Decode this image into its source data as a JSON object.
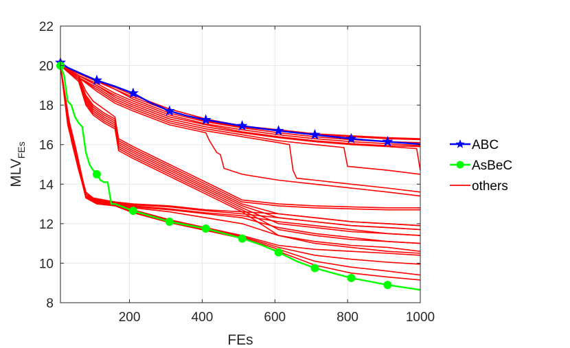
{
  "chart_data": {
    "type": "line",
    "xlabel": "FEs",
    "ylabel_main": "MLV",
    "ylabel_sub": "FEs",
    "xlim": [
      10,
      1000
    ],
    "ylim": [
      8,
      22
    ],
    "x_ticks": [
      200,
      400,
      600,
      800,
      1000
    ],
    "y_ticks": [
      8,
      10,
      12,
      14,
      16,
      18,
      20,
      22
    ],
    "grid": true,
    "legend_position": "right",
    "legend": [
      "ABC",
      "AsBeC",
      "others"
    ],
    "series": [
      {
        "name": "ABC",
        "color": "#0000ff",
        "marker": "star",
        "x": [
          10,
          30,
          60,
          110,
          160,
          210,
          260,
          280,
          310,
          360,
          410,
          460,
          510,
          560,
          610,
          660,
          710,
          760,
          810,
          860,
          910,
          960,
          1000
        ],
        "y": [
          20.15,
          19.9,
          19.65,
          19.25,
          18.95,
          18.6,
          18.1,
          17.95,
          17.7,
          17.45,
          17.25,
          17.1,
          16.95,
          16.82,
          16.7,
          16.6,
          16.5,
          16.4,
          16.3,
          16.22,
          16.15,
          16.08,
          16.02
        ],
        "marker_x": [
          10,
          110,
          210,
          310,
          410,
          510,
          610,
          710,
          810,
          910
        ]
      },
      {
        "name": "AsBeC",
        "color": "#00ff00",
        "marker": "circle",
        "x": [
          10,
          20,
          30,
          40,
          50,
          60,
          70,
          80,
          90,
          100,
          110,
          120,
          130,
          140,
          150,
          160,
          210,
          310,
          410,
          510,
          560,
          610,
          660,
          710,
          810,
          910,
          1000
        ],
        "y": [
          20.0,
          19.5,
          18.2,
          18.0,
          17.4,
          17.1,
          16.9,
          15.6,
          15.0,
          14.7,
          14.5,
          14.2,
          14.1,
          14.1,
          13.0,
          13.0,
          12.65,
          12.1,
          11.75,
          11.25,
          10.95,
          10.55,
          10.1,
          9.75,
          9.25,
          8.9,
          8.65
        ],
        "marker_x": [
          10,
          110,
          210,
          310,
          410,
          510,
          610,
          710,
          810,
          910
        ]
      },
      {
        "name": "others",
        "color": "#ff0000",
        "lines": [
          {
            "x": [
              10,
              60,
              110,
              160,
              210,
              310,
              410,
              510,
              610,
              710,
              810,
              910,
              1000
            ],
            "y": [
              20.0,
              19.6,
              19.2,
              18.8,
              18.4,
              17.7,
              17.2,
              16.9,
              16.7,
              16.5,
              16.4,
              16.3,
              16.25
            ]
          },
          {
            "x": [
              10,
              60,
              110,
              160,
              210,
              310,
              410,
              510,
              610,
              710,
              810,
              910,
              1000
            ],
            "y": [
              20.0,
              19.6,
              19.2,
              18.8,
              18.3,
              17.6,
              17.15,
              16.85,
              16.6,
              16.4,
              16.25,
              16.15,
              16.1
            ]
          },
          {
            "x": [
              10,
              60,
              110,
              160,
              210,
              310,
              410,
              510,
              610,
              710,
              810,
              910,
              1000
            ],
            "y": [
              20.0,
              19.5,
              19.1,
              18.6,
              18.2,
              17.5,
              17.05,
              16.75,
              16.5,
              16.3,
              16.15,
              16.05,
              15.95
            ]
          },
          {
            "x": [
              10,
              60,
              110,
              160,
              210,
              310,
              410,
              510,
              610,
              710,
              810,
              910,
              1000
            ],
            "y": [
              20.0,
              19.5,
              19.0,
              18.5,
              18.1,
              17.4,
              17.0,
              16.65,
              16.4,
              16.2,
              16.05,
              15.95,
              15.9
            ]
          },
          {
            "x": [
              10,
              60,
              110,
              160,
              210,
              310,
              410,
              510,
              610,
              710,
              810,
              910,
              990,
              1000
            ],
            "y": [
              20.0,
              19.5,
              19.0,
              18.4,
              18.0,
              17.3,
              16.9,
              16.6,
              16.35,
              16.15,
              16.0,
              15.9,
              15.8,
              14.7
            ]
          },
          {
            "x": [
              10,
              60,
              110,
              160,
              210,
              310,
              410,
              510,
              610,
              710,
              790,
              800,
              910,
              1000
            ],
            "y": [
              20.0,
              19.4,
              18.9,
              18.3,
              17.9,
              17.2,
              16.8,
              16.5,
              16.2,
              16.0,
              15.85,
              14.9,
              14.7,
              14.5
            ]
          },
          {
            "x": [
              10,
              60,
              110,
              160,
              210,
              310,
              410,
              510,
              610,
              640,
              650,
              660,
              710,
              810,
              910,
              1000
            ],
            "y": [
              20.0,
              19.4,
              18.8,
              18.2,
              17.8,
              17.1,
              16.7,
              16.4,
              16.1,
              16.0,
              14.7,
              14.3,
              14.2,
              14.0,
              13.8,
              13.6
            ]
          },
          {
            "x": [
              10,
              60,
              110,
              160,
              210,
              310,
              410,
              420,
              440,
              450,
              460,
              510,
              610,
              710,
              810,
              910,
              1000
            ],
            "y": [
              20.0,
              19.4,
              18.7,
              18.1,
              17.7,
              17.0,
              16.6,
              16.2,
              15.6,
              15.5,
              14.8,
              14.5,
              14.2,
              14.0,
              13.8,
              13.6,
              13.4
            ]
          },
          {
            "x": [
              10,
              60,
              80,
              100,
              130,
              160,
              170,
              210,
              310,
              410,
              510,
              610,
              710,
              810,
              910,
              1000
            ],
            "y": [
              20.0,
              19.5,
              18.7,
              18.2,
              17.8,
              17.4,
              16.3,
              15.9,
              15.0,
              14.1,
              13.2,
              13.0,
              12.9,
              12.85,
              12.8,
              12.8
            ]
          },
          {
            "x": [
              10,
              60,
              80,
              100,
              130,
              160,
              170,
              210,
              310,
              410,
              510,
              610,
              710,
              810,
              910,
              1000
            ],
            "y": [
              20.0,
              19.4,
              18.5,
              18.0,
              17.6,
              17.3,
              16.2,
              15.8,
              14.9,
              14.0,
              13.1,
              12.9,
              12.8,
              12.75,
              12.7,
              12.7
            ]
          },
          {
            "x": [
              10,
              60,
              80,
              100,
              130,
              160,
              170,
              210,
              310,
              410,
              510,
              610,
              710,
              810,
              910,
              1000
            ],
            "y": [
              20.0,
              19.4,
              18.4,
              17.9,
              17.5,
              17.2,
              16.1,
              15.7,
              14.8,
              13.9,
              13.0,
              12.5,
              12.3,
              12.1,
              12.0,
              11.9
            ]
          },
          {
            "x": [
              10,
              60,
              80,
              100,
              130,
              160,
              170,
              210,
              310,
              410,
              510,
              610,
              710,
              810,
              910,
              1000
            ],
            "y": [
              20.0,
              19.3,
              18.3,
              17.8,
              17.4,
              17.1,
              16.0,
              15.6,
              14.7,
              13.8,
              12.9,
              12.3,
              12.1,
              11.9,
              11.8,
              11.7
            ]
          },
          {
            "x": [
              10,
              60,
              80,
              100,
              130,
              160,
              170,
              210,
              310,
              410,
              510,
              610,
              710,
              810,
              910,
              1000
            ],
            "y": [
              20.0,
              19.3,
              18.2,
              17.7,
              17.3,
              17.0,
              15.9,
              15.5,
              14.6,
              13.7,
              12.8,
              12.0,
              11.8,
              11.6,
              11.5,
              11.4
            ]
          },
          {
            "x": [
              10,
              60,
              80,
              100,
              130,
              160,
              170,
              210,
              310,
              410,
              510,
              610,
              710,
              810,
              910,
              1000
            ],
            "y": [
              20.0,
              19.3,
              18.1,
              17.6,
              17.2,
              16.9,
              15.8,
              15.4,
              14.5,
              13.6,
              12.7,
              11.7,
              11.4,
              11.2,
              11.1,
              11.0
            ]
          },
          {
            "x": [
              10,
              60,
              80,
              100,
              130,
              160,
              170,
              210,
              310,
              410,
              510,
              610,
              710,
              810,
              910,
              1000
            ],
            "y": [
              20.0,
              19.2,
              18.0,
              17.5,
              17.1,
              16.8,
              15.7,
              15.3,
              14.4,
              13.5,
              12.6,
              11.4,
              11.1,
              10.9,
              10.8,
              10.6
            ]
          },
          {
            "x": [
              10,
              30,
              50,
              80,
              110,
              160,
              210,
              310,
              410,
              510,
              610,
              710,
              810,
              910,
              1000
            ],
            "y": [
              20.0,
              17.5,
              16.0,
              13.5,
              13.2,
              13.1,
              13.0,
              12.9,
              12.7,
              12.6,
              12.5,
              12.3,
              12.1,
              12.0,
              11.9
            ]
          },
          {
            "x": [
              10,
              30,
              50,
              80,
              110,
              160,
              210,
              310,
              410,
              510,
              610,
              710,
              810,
              910,
              1000
            ],
            "y": [
              20.0,
              17.3,
              15.8,
              13.4,
              13.15,
              13.05,
              12.95,
              12.85,
              12.65,
              12.5,
              12.3,
              12.1,
              11.9,
              11.8,
              11.7
            ]
          },
          {
            "x": [
              10,
              30,
              50,
              80,
              110,
              160,
              210,
              310,
              410,
              510,
              610,
              710,
              810,
              910,
              1000
            ],
            "y": [
              20.0,
              17.2,
              15.7,
              13.35,
              13.1,
              13.0,
              12.9,
              12.75,
              12.55,
              12.4,
              12.1,
              11.9,
              11.7,
              11.5,
              11.4
            ]
          },
          {
            "x": [
              10,
              30,
              50,
              80,
              110,
              160,
              210,
              310,
              410,
              510,
              610,
              710,
              810,
              910,
              1000
            ],
            "y": [
              20.0,
              17.1,
              15.6,
              13.3,
              13.05,
              12.95,
              12.85,
              12.7,
              12.5,
              12.3,
              11.8,
              11.5,
              11.3,
              11.1,
              11.0
            ]
          },
          {
            "x": [
              10,
              30,
              50,
              80,
              110,
              160,
              210,
              310,
              410,
              510,
              610,
              710,
              810,
              910,
              1000
            ],
            "y": [
              20.0,
              17.0,
              15.5,
              13.3,
              13.0,
              12.9,
              12.8,
              12.6,
              12.3,
              12.0,
              11.4,
              11.0,
              10.8,
              10.6,
              10.5
            ]
          },
          {
            "x": [
              10,
              40,
              60,
              80,
              100,
              130,
              160,
              210,
              310,
              410,
              510,
              610,
              710,
              810,
              910,
              1000
            ],
            "y": [
              20.0,
              16.5,
              15.0,
              13.6,
              13.3,
              13.2,
              13.1,
              12.7,
              12.2,
              11.8,
              11.4,
              10.9,
              10.7,
              10.6,
              10.5,
              10.4
            ]
          },
          {
            "x": [
              10,
              40,
              60,
              80,
              100,
              130,
              160,
              210,
              310,
              410,
              510,
              610,
              710,
              810,
              910,
              1000
            ],
            "y": [
              20.0,
              16.4,
              14.9,
              13.5,
              13.25,
              13.15,
              13.0,
              12.65,
              12.15,
              11.75,
              11.35,
              10.8,
              10.4,
              10.2,
              10.05,
              9.95
            ]
          },
          {
            "x": [
              10,
              40,
              60,
              80,
              100,
              130,
              160,
              210,
              310,
              410,
              510,
              610,
              710,
              810,
              910,
              1000
            ],
            "y": [
              20.0,
              16.3,
              14.8,
              13.5,
              13.2,
              13.1,
              12.95,
              12.6,
              12.1,
              11.7,
              11.3,
              10.7,
              10.1,
              9.8,
              9.6,
              9.4
            ]
          },
          {
            "x": [
              10,
              40,
              60,
              80,
              100,
              130,
              160,
              210,
              310,
              410,
              510,
              610,
              710,
              810,
              910,
              1000
            ],
            "y": [
              20.0,
              16.2,
              14.7,
              13.4,
              13.15,
              13.05,
              12.9,
              12.55,
              12.05,
              11.65,
              11.25,
              10.6,
              9.9,
              9.5,
              9.3,
              9.15
            ]
          },
          {
            "x": [
              10,
              60,
              110,
              160,
              210,
              310,
              410,
              510,
              610,
              710,
              810,
              910,
              1000
            ],
            "y": [
              20.0,
              19.6,
              19.2,
              18.9,
              18.5,
              17.8,
              17.3,
              16.95,
              16.75,
              16.55,
              16.45,
              16.35,
              16.3
            ]
          }
        ]
      }
    ]
  }
}
